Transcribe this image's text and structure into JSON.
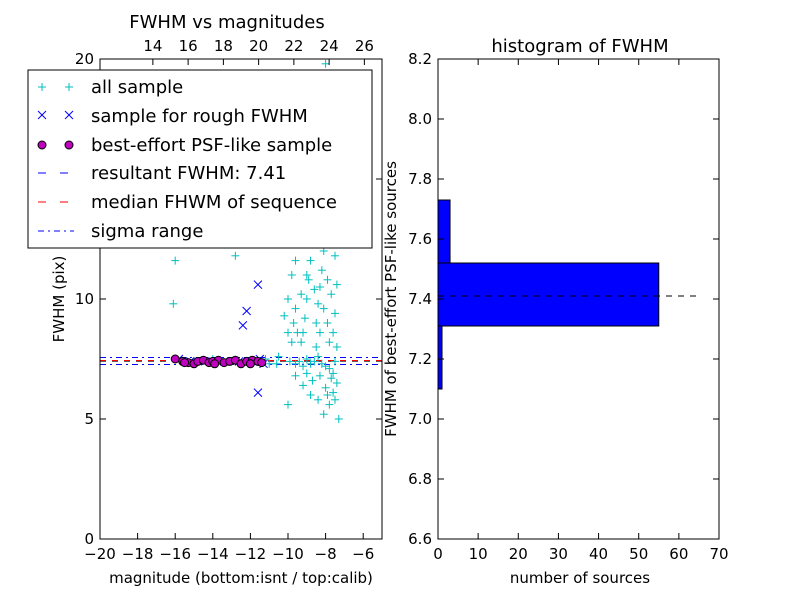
{
  "chart_data": [
    {
      "type": "scatter",
      "title": "FWHM vs magnitudes",
      "xlabel": "magnitude (bottom:isnt / top:calib)",
      "ylabel": "FWHM (pix)",
      "xlim": [
        -20,
        -5
      ],
      "ylim": [
        0,
        20
      ],
      "xticks": [
        -20,
        -18,
        -16,
        -14,
        -12,
        -10,
        -8,
        -6
      ],
      "xtick_labels": [
        "−20",
        "−18",
        "−16",
        "−14",
        "−12",
        "−10",
        "−8",
        "−6"
      ],
      "yticks": [
        0,
        5,
        10,
        15,
        20
      ],
      "ytick_labels": [
        "0",
        "5",
        "10",
        "15",
        "20"
      ],
      "top_xlim": [
        11,
        27
      ],
      "top_xticks": [
        14,
        16,
        18,
        20,
        22,
        24,
        26
      ],
      "top_xtick_labels": [
        "14",
        "16",
        "18",
        "20",
        "22",
        "24",
        "26"
      ],
      "legend": {
        "placement": "upper-left",
        "entries": [
          {
            "label": "all sample",
            "marker": "plus",
            "color": "#00bfbf"
          },
          {
            "label": "sample for rough FWHM",
            "marker": "x",
            "color": "#0000ff"
          },
          {
            "label": "best-effort PSF-like sample",
            "marker": "circle",
            "color": "#bf00bf"
          },
          {
            "label": "resultant FWHM: 7.41",
            "marker": "dashed",
            "color": "#0000ff"
          },
          {
            "label": "median FHWM of sequence",
            "marker": "dashed",
            "color": "#ff0000"
          },
          {
            "label": "sigma range",
            "marker": "dashdot",
            "color": "#0000ff"
          }
        ]
      },
      "hlines": [
        {
          "y": 7.41,
          "style": "dashed",
          "color": "#000000"
        },
        {
          "y": 7.44,
          "style": "dashed",
          "color": "#ff0000"
        },
        {
          "y": 7.27,
          "style": "dashdot",
          "color": "#0000ff"
        },
        {
          "y": 7.56,
          "style": "dashdot",
          "color": "#0000ff"
        }
      ],
      "series": [
        {
          "name": "all sample",
          "marker": "plus",
          "color": "#00bfbf",
          "points": [
            [
              -16.0,
              11.6
            ],
            [
              -16.1,
              9.8
            ],
            [
              -12.8,
              11.8
            ],
            [
              -11.2,
              7.5
            ],
            [
              -10.6,
              7.3
            ],
            [
              -10.0,
              5.6
            ],
            [
              -9.9,
              7.4
            ],
            [
              -9.6,
              7.3
            ],
            [
              -9.4,
              7.4
            ],
            [
              -9.2,
              7.2
            ],
            [
              -9.0,
              7.5
            ],
            [
              -8.8,
              7.3
            ],
            [
              -8.6,
              7.4
            ],
            [
              -8.4,
              7.6
            ],
            [
              -8.2,
              7.3
            ],
            [
              -8.0,
              7.2
            ],
            [
              -7.8,
              7.1
            ],
            [
              -7.6,
              6.9
            ],
            [
              -7.4,
              6.5
            ],
            [
              -7.3,
              5.0
            ],
            [
              -7.6,
              6.1
            ],
            [
              -8.0,
              6.3
            ],
            [
              -8.3,
              6.8
            ],
            [
              -8.7,
              6.6
            ],
            [
              -9.0,
              6.9
            ],
            [
              -8.1,
              5.2
            ],
            [
              -7.8,
              5.6
            ],
            [
              -8.5,
              8.0
            ],
            [
              -8.5,
              9.0
            ],
            [
              -8.4,
              9.8
            ],
            [
              -8.3,
              10.5
            ],
            [
              -8.2,
              11.2
            ],
            [
              -8.1,
              12.0
            ],
            [
              -8.0,
              12.8
            ],
            [
              -8.3,
              13.5
            ],
            [
              -8.5,
              14.2
            ],
            [
              -8.2,
              15.0
            ],
            [
              -8.0,
              15.6
            ],
            [
              -8.4,
              16.3
            ],
            [
              -8.6,
              12.4
            ],
            [
              -8.8,
              11.6
            ],
            [
              -8.9,
              10.8
            ],
            [
              -9.0,
              10.0
            ],
            [
              -9.1,
              9.2
            ],
            [
              -9.2,
              8.6
            ],
            [
              -9.3,
              8.2
            ],
            [
              -9.5,
              8.6
            ],
            [
              -9.7,
              9.0
            ],
            [
              -9.6,
              9.6
            ],
            [
              -9.3,
              10.2
            ],
            [
              -9.0,
              11.0
            ],
            [
              -8.7,
              13.2
            ],
            [
              -8.6,
              14.6
            ],
            [
              -8.9,
              15.0
            ],
            [
              -9.2,
              13.0
            ],
            [
              -9.6,
              11.6
            ],
            [
              -9.8,
              11.0
            ],
            [
              -10.0,
              10.0
            ],
            [
              -10.2,
              9.3
            ],
            [
              -10.0,
              8.6
            ],
            [
              -9.8,
              8.2
            ],
            [
              -7.9,
              10.8
            ],
            [
              -7.7,
              10.2
            ],
            [
              -7.5,
              9.4
            ],
            [
              -7.6,
              8.6
            ],
            [
              -7.8,
              8.2
            ],
            [
              -7.9,
              9.0
            ],
            [
              -8.1,
              9.6
            ],
            [
              -8.3,
              8.6
            ],
            [
              -8.6,
              10.4
            ],
            [
              -8.9,
              12.4
            ],
            [
              -9.3,
              14.2
            ],
            [
              -8.1,
              17.0
            ],
            [
              -8.4,
              17.8
            ],
            [
              -8.0,
              19.8
            ],
            [
              -8.7,
              16.8
            ],
            [
              -9.1,
              16.0
            ],
            [
              -7.9,
              14.0
            ],
            [
              -7.7,
              13.2
            ],
            [
              -7.5,
              11.8
            ],
            [
              -7.4,
              10.6
            ],
            [
              -7.4,
              8.0
            ],
            [
              -7.5,
              7.4
            ],
            [
              -7.7,
              6.7
            ],
            [
              -11.0,
              7.3
            ],
            [
              -12.0,
              7.4
            ],
            [
              -13.0,
              7.4
            ],
            [
              -14.0,
              7.5
            ],
            [
              -15.0,
              7.4
            ],
            [
              -10.5,
              7.6
            ],
            [
              -9.6,
              6.8
            ],
            [
              -9.2,
              6.4
            ],
            [
              -8.8,
              6.0
            ],
            [
              -8.4,
              5.8
            ],
            [
              -7.9,
              6.0
            ],
            [
              -7.5,
              5.8
            ]
          ]
        },
        {
          "name": "sample for rough FWHM",
          "marker": "x",
          "color": "#0000ff",
          "points": [
            [
              -11.6,
              10.6
            ],
            [
              -12.2,
              9.5
            ],
            [
              -12.4,
              8.9
            ],
            [
              -11.6,
              6.1
            ],
            [
              -11.5,
              7.5
            ],
            [
              -11.8,
              7.4
            ],
            [
              -12.6,
              7.4
            ],
            [
              -13.4,
              7.4
            ],
            [
              -14.4,
              7.4
            ],
            [
              -15.2,
              7.4
            ],
            [
              -15.8,
              7.5
            ],
            [
              -11.3,
              7.3
            ]
          ]
        },
        {
          "name": "best-effort PSF-like sample",
          "marker": "circle",
          "color": "#bf00bf",
          "points": [
            [
              -16.0,
              7.5
            ],
            [
              -15.6,
              7.4
            ],
            [
              -15.3,
              7.35
            ],
            [
              -15.0,
              7.3
            ],
            [
              -14.8,
              7.4
            ],
            [
              -14.5,
              7.45
            ],
            [
              -14.2,
              7.35
            ],
            [
              -14.0,
              7.4
            ],
            [
              -13.7,
              7.45
            ],
            [
              -13.4,
              7.35
            ],
            [
              -13.1,
              7.4
            ],
            [
              -12.8,
              7.45
            ],
            [
              -12.5,
              7.3
            ],
            [
              -12.2,
              7.4
            ],
            [
              -11.9,
              7.45
            ],
            [
              -11.6,
              7.4
            ],
            [
              -11.4,
              7.35
            ],
            [
              -12.0,
              7.3
            ],
            [
              -13.9,
              7.3
            ],
            [
              -15.5,
              7.35
            ]
          ]
        }
      ]
    },
    {
      "type": "bar",
      "orientation": "horizontal",
      "title": "histogram of FWHM",
      "xlabel": "number of sources",
      "ylabel": "FWHM of best-effort PSF-like sources",
      "xlim": [
        0,
        70
      ],
      "ylim": [
        6.6,
        8.2
      ],
      "xticks": [
        0,
        10,
        20,
        30,
        40,
        50,
        60,
        70
      ],
      "xtick_labels": [
        "0",
        "10",
        "20",
        "30",
        "40",
        "50",
        "60",
        "70"
      ],
      "yticks": [
        6.6,
        6.8,
        7.0,
        7.2,
        7.4,
        7.6,
        7.8,
        8.0,
        8.2
      ],
      "ytick_labels": [
        "6.6",
        "6.8",
        "7.0",
        "7.2",
        "7.4",
        "7.6",
        "7.8",
        "8.0",
        "8.2"
      ],
      "bar_color": "#0000ff",
      "bins": [
        {
          "low": 7.1,
          "high": 7.31,
          "count": 1
        },
        {
          "low": 7.31,
          "high": 7.52,
          "count": 55
        },
        {
          "low": 7.52,
          "high": 7.73,
          "count": 3
        }
      ],
      "hline": {
        "y": 7.41,
        "style": "dashed",
        "color": "#000000",
        "x_to": 65
      }
    }
  ]
}
